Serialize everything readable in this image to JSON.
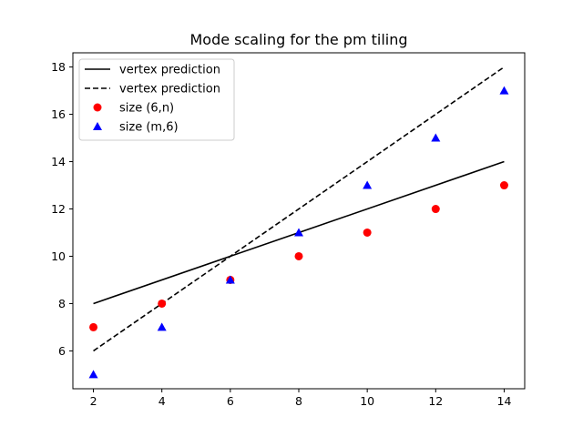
{
  "chart_data": {
    "type": "scatter",
    "title": "Mode scaling for the pm tiling",
    "xlabel": "",
    "ylabel": "",
    "xlim": [
      1.4,
      14.6
    ],
    "ylim": [
      4.4,
      18.6
    ],
    "xticks": [
      2,
      4,
      6,
      8,
      10,
      12,
      14
    ],
    "yticks": [
      6,
      8,
      10,
      12,
      14,
      16,
      18
    ],
    "grid": false,
    "legend_position": "top-left",
    "series": [
      {
        "name": "vertex prediction",
        "kind": "line",
        "style": "solid",
        "color": "#000000",
        "x": [
          2,
          14
        ],
        "y": [
          8,
          14
        ]
      },
      {
        "name": "vertex prediction",
        "kind": "line",
        "style": "dashed",
        "color": "#000000",
        "x": [
          2,
          14
        ],
        "y": [
          6,
          18
        ]
      },
      {
        "name": "size (6,n)",
        "kind": "marker",
        "marker": "circle",
        "color": "#ff0000",
        "x": [
          2,
          4,
          6,
          8,
          10,
          12,
          14
        ],
        "y": [
          7,
          8,
          9,
          10,
          11,
          12,
          13
        ]
      },
      {
        "name": "size (m,6)",
        "kind": "marker",
        "marker": "triangle",
        "color": "#0000ff",
        "x": [
          2,
          4,
          6,
          8,
          10,
          12,
          14
        ],
        "y": [
          5,
          7,
          9,
          11,
          13,
          15,
          17
        ]
      }
    ]
  }
}
